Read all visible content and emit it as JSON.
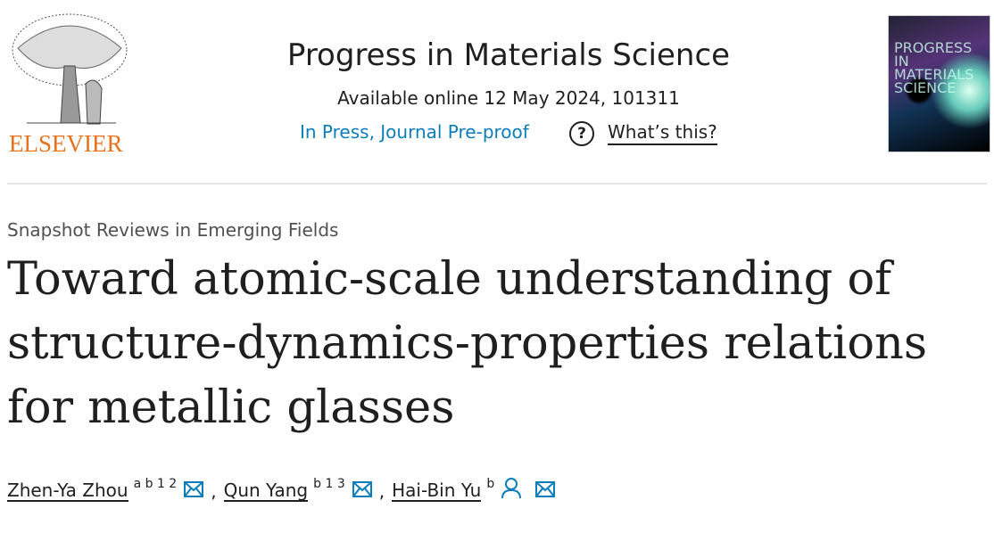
{
  "publisher": {
    "name": "ELSEVIER",
    "brand_color": "#e9711c"
  },
  "journal": {
    "title": "Progress in Materials Science",
    "available": "Available online 12 May 2024, 101311",
    "status": "In Press, Journal Pre-proof",
    "help": "What’s this?",
    "cover_text": "PROGRESS IN MATERIALS SCIENCE"
  },
  "article": {
    "section": "Snapshot Reviews in Emerging Fields",
    "title": "Toward atomic-scale understanding of structure-dynamics-properties relations for metallic glasses"
  },
  "authors": [
    {
      "name": "Zhen-Ya Zhou",
      "affil": "a b 1 2",
      "icons": [
        "mail-icon"
      ]
    },
    {
      "name": "Qun Yang",
      "affil": "b 1 3",
      "icons": [
        "mail-icon"
      ]
    },
    {
      "name": "Hai-Bin Yu",
      "affil": "b",
      "icons": [
        "person-icon",
        "mail-icon"
      ]
    }
  ],
  "separator": ",",
  "colors": {
    "link": "#0c7dbb"
  }
}
